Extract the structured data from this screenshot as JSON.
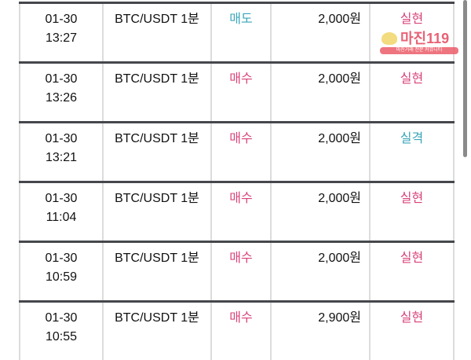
{
  "rows": [
    {
      "date": "01-30",
      "time": "13:27",
      "pair": "BTC/USDT 1분",
      "side": "매도",
      "side_type": "sell",
      "amount": "2,000원",
      "result": "실현",
      "result_type": "buy"
    },
    {
      "date": "01-30",
      "time": "13:26",
      "pair": "BTC/USDT 1분",
      "side": "매수",
      "side_type": "buy",
      "amount": "2,000원",
      "result": "실현",
      "result_type": "buy"
    },
    {
      "date": "01-30",
      "time": "13:21",
      "pair": "BTC/USDT 1분",
      "side": "매수",
      "side_type": "buy",
      "amount": "2,000원",
      "result": "실격",
      "result_type": "sell"
    },
    {
      "date": "01-30",
      "time": "11:04",
      "pair": "BTC/USDT 1분",
      "side": "매수",
      "side_type": "buy",
      "amount": "2,000원",
      "result": "실현",
      "result_type": "buy"
    },
    {
      "date": "01-30",
      "time": "10:59",
      "pair": "BTC/USDT 1분",
      "side": "매수",
      "side_type": "buy",
      "amount": "2,000원",
      "result": "실현",
      "result_type": "buy"
    },
    {
      "date": "01-30",
      "time": "10:55",
      "pair": "BTC/USDT 1분",
      "side": "매수",
      "side_type": "buy",
      "amount": "2,900원",
      "result": "실현",
      "result_type": "buy"
    }
  ],
  "watermark": {
    "name": "마진119",
    "tagline": "마진거래 전문 커뮤니티"
  },
  "colors": {
    "sell": "#3aa6b9",
    "buy": "#d9437a",
    "border": "#45474c"
  }
}
